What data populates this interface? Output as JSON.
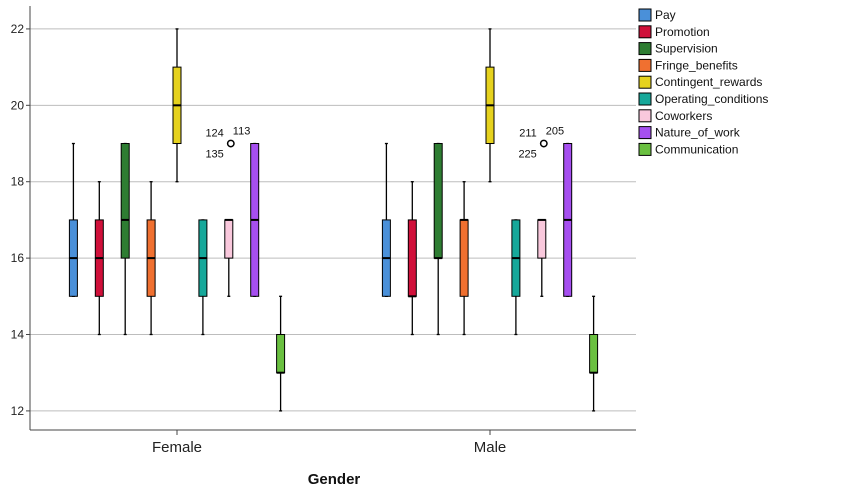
{
  "chart_data": {
    "type": "boxplot",
    "title": "",
    "xlabel": "Gender",
    "ylabel": "",
    "ylim": [
      11.5,
      22.6
    ],
    "yticks": [
      12,
      14,
      16,
      18,
      20,
      22
    ],
    "grid": true,
    "legend_position": "top-right",
    "categories": [
      "Female",
      "Male"
    ],
    "series": [
      {
        "name": "Pay",
        "color": "#4a90d9",
        "stats": [
          {
            "min": 15,
            "q1": 15,
            "median": 16,
            "q3": 17,
            "max": 19
          },
          {
            "min": 15,
            "q1": 15,
            "median": 16,
            "q3": 17,
            "max": 19
          }
        ]
      },
      {
        "name": "Promotion",
        "color": "#d0103a",
        "stats": [
          {
            "min": 14,
            "q1": 15,
            "median": 16,
            "q3": 17,
            "max": 18
          },
          {
            "min": 14,
            "q1": 15,
            "median": 15,
            "q3": 17,
            "max": 18
          }
        ]
      },
      {
        "name": "Supervision",
        "color": "#2e7d32",
        "stats": [
          {
            "min": 14,
            "q1": 16,
            "median": 17,
            "q3": 19,
            "max": 19
          },
          {
            "min": 14,
            "q1": 16,
            "median": 16,
            "q3": 19,
            "max": 19
          }
        ]
      },
      {
        "name": "Fringe_benefits",
        "color": "#f07030",
        "stats": [
          {
            "min": 14,
            "q1": 15,
            "median": 16,
            "q3": 17,
            "max": 18
          },
          {
            "min": 14,
            "q1": 15,
            "median": 17,
            "q3": 17,
            "max": 18
          }
        ]
      },
      {
        "name": "Contingent_rewards",
        "color": "#e6d21e",
        "stats": [
          {
            "min": 18,
            "q1": 19,
            "median": 20,
            "q3": 21,
            "max": 22
          },
          {
            "min": 18,
            "q1": 19,
            "median": 20,
            "q3": 21,
            "max": 22
          }
        ]
      },
      {
        "name": "Operating_conditions",
        "color": "#16a89a",
        "stats": [
          {
            "min": 14,
            "q1": 15,
            "median": 16,
            "q3": 17,
            "max": 17
          },
          {
            "min": 14,
            "q1": 15,
            "median": 16,
            "q3": 17,
            "max": 17
          }
        ]
      },
      {
        "name": "Coworkers",
        "color": "#f9c8dc",
        "stats": [
          {
            "min": 15,
            "q1": 16,
            "median": 17,
            "q3": 17,
            "max": 17
          },
          {
            "min": 15,
            "q1": 16,
            "median": 17,
            "q3": 17,
            "max": 17
          }
        ]
      },
      {
        "name": "Nature_of_work",
        "color": "#a64ff0",
        "stats": [
          {
            "min": 15,
            "q1": 15,
            "median": 17,
            "q3": 19,
            "max": 19
          },
          {
            "min": 15,
            "q1": 15,
            "median": 17,
            "q3": 19,
            "max": 19
          }
        ]
      },
      {
        "name": "Communication",
        "color": "#6ac040",
        "stats": [
          {
            "min": 12,
            "q1": 13,
            "median": 13,
            "q3": 14,
            "max": 15
          },
          {
            "min": 12,
            "q1": 13,
            "median": 13,
            "q3": 14,
            "max": 15
          }
        ]
      }
    ],
    "outliers": [
      {
        "category": "Female",
        "series": "Coworkers",
        "value": 19,
        "labels": [
          "124",
          "113",
          "135"
        ]
      },
      {
        "category": "Male",
        "series": "Coworkers",
        "value": 19,
        "labels": [
          "211",
          "205",
          "225"
        ]
      }
    ]
  }
}
